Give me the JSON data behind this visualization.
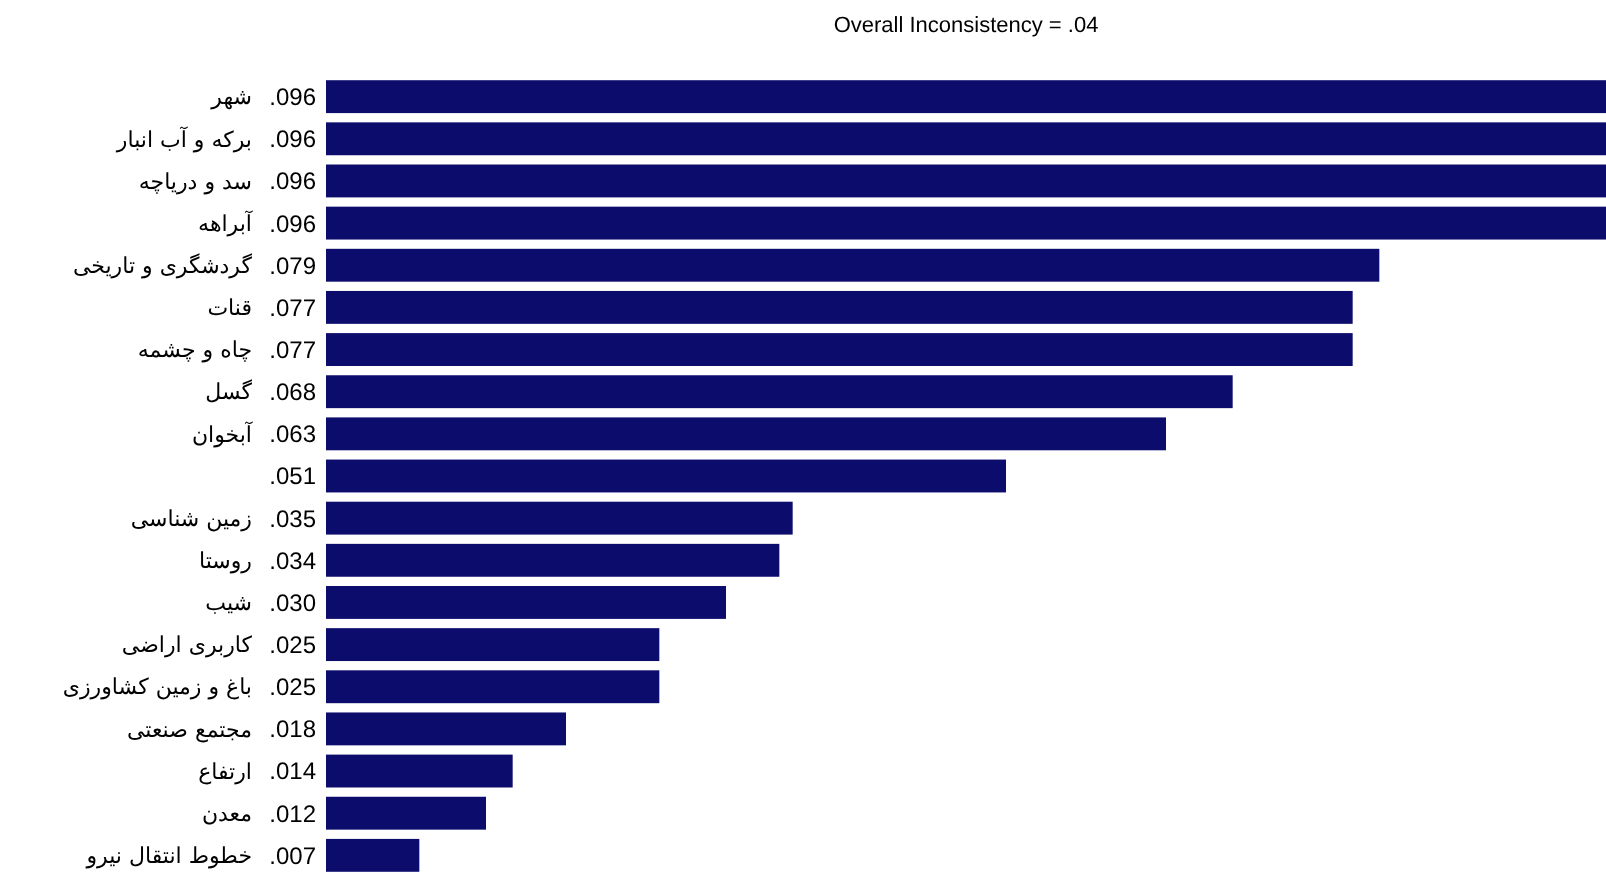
{
  "chart_data": {
    "type": "bar",
    "orientation": "horizontal",
    "relative": false,
    "title": "Overall Inconsistency = .04",
    "categories": [
      "شهر",
      "برکه و آب انبار",
      "سد و دریاچه",
      "آبراهه",
      "گردشگری و تاریخی",
      "قنات",
      "چاه و چشمه",
      "گسل",
      "آبخوان",
      null,
      "زمین شناسی",
      "روستا",
      "شیب",
      "کاربری اراضی",
      "باغ و زمین کشاورزی",
      "مجتمع صنعتی",
      "ارتفاع",
      "معدن",
      "خطوط انتقال نیرو"
    ],
    "values": [
      0.096,
      0.096,
      0.096,
      0.096,
      0.079,
      0.077,
      0.077,
      0.068,
      0.063,
      0.051,
      0.035,
      0.034,
      0.03,
      0.025,
      0.025,
      0.018,
      0.014,
      0.012,
      0.007
    ],
    "value_labels": [
      ".096",
      ".096",
      ".096",
      ".096",
      ".079",
      ".077",
      ".077",
      ".068",
      ".063",
      ".051",
      ".035",
      ".034",
      ".030",
      ".025",
      ".025",
      ".018",
      ".014",
      ".012",
      ".007"
    ],
    "color": "#0c0c6c"
  }
}
